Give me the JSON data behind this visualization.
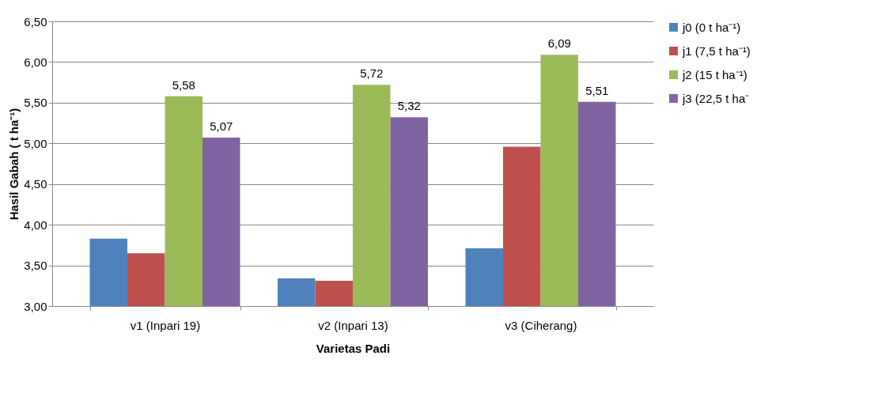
{
  "chart_data": {
    "type": "bar",
    "xlabel": "Varietas Padi",
    "ylabel": "Hasil Gabah  ( t ha⁻¹)",
    "categories": [
      "v1 (Inpari 19)",
      "v2 (Inpari 13)",
      "v3 (Ciherang)"
    ],
    "series": [
      {
        "name": "j0   (0 t ha⁻¹)",
        "color": "#4f81bd",
        "values": [
          3.83,
          3.34,
          3.71
        ]
      },
      {
        "name": "j1   (7,5 t ha⁻¹)",
        "color": "#c0504d",
        "values": [
          3.65,
          3.31,
          4.96
        ]
      },
      {
        "name": "j2   (15 t ha⁻¹)",
        "color": "#9bbb59",
        "values": [
          5.58,
          5.72,
          6.09
        ],
        "value_labels": [
          "5,58",
          "5,72",
          "6,09"
        ]
      },
      {
        "name": "j3   (22,5 t ha⁻",
        "color": "#8064a2",
        "values": [
          5.07,
          5.32,
          5.51
        ],
        "value_labels": [
          "5,07",
          "5,32",
          "5,51"
        ]
      }
    ],
    "ylim": [
      3.0,
      6.5
    ],
    "yticks": [
      {
        "value": 3.0,
        "label": "3,00"
      },
      {
        "value": 3.5,
        "label": "3,50"
      },
      {
        "value": 4.0,
        "label": "4,00"
      },
      {
        "value": 4.5,
        "label": "4,50"
      },
      {
        "value": 5.0,
        "label": "5,00"
      },
      {
        "value": 5.5,
        "label": "5,50"
      },
      {
        "value": 6.0,
        "label": "6,00"
      },
      {
        "value": 6.5,
        "label": "6,50"
      }
    ],
    "grid": "y",
    "legend": "right"
  }
}
